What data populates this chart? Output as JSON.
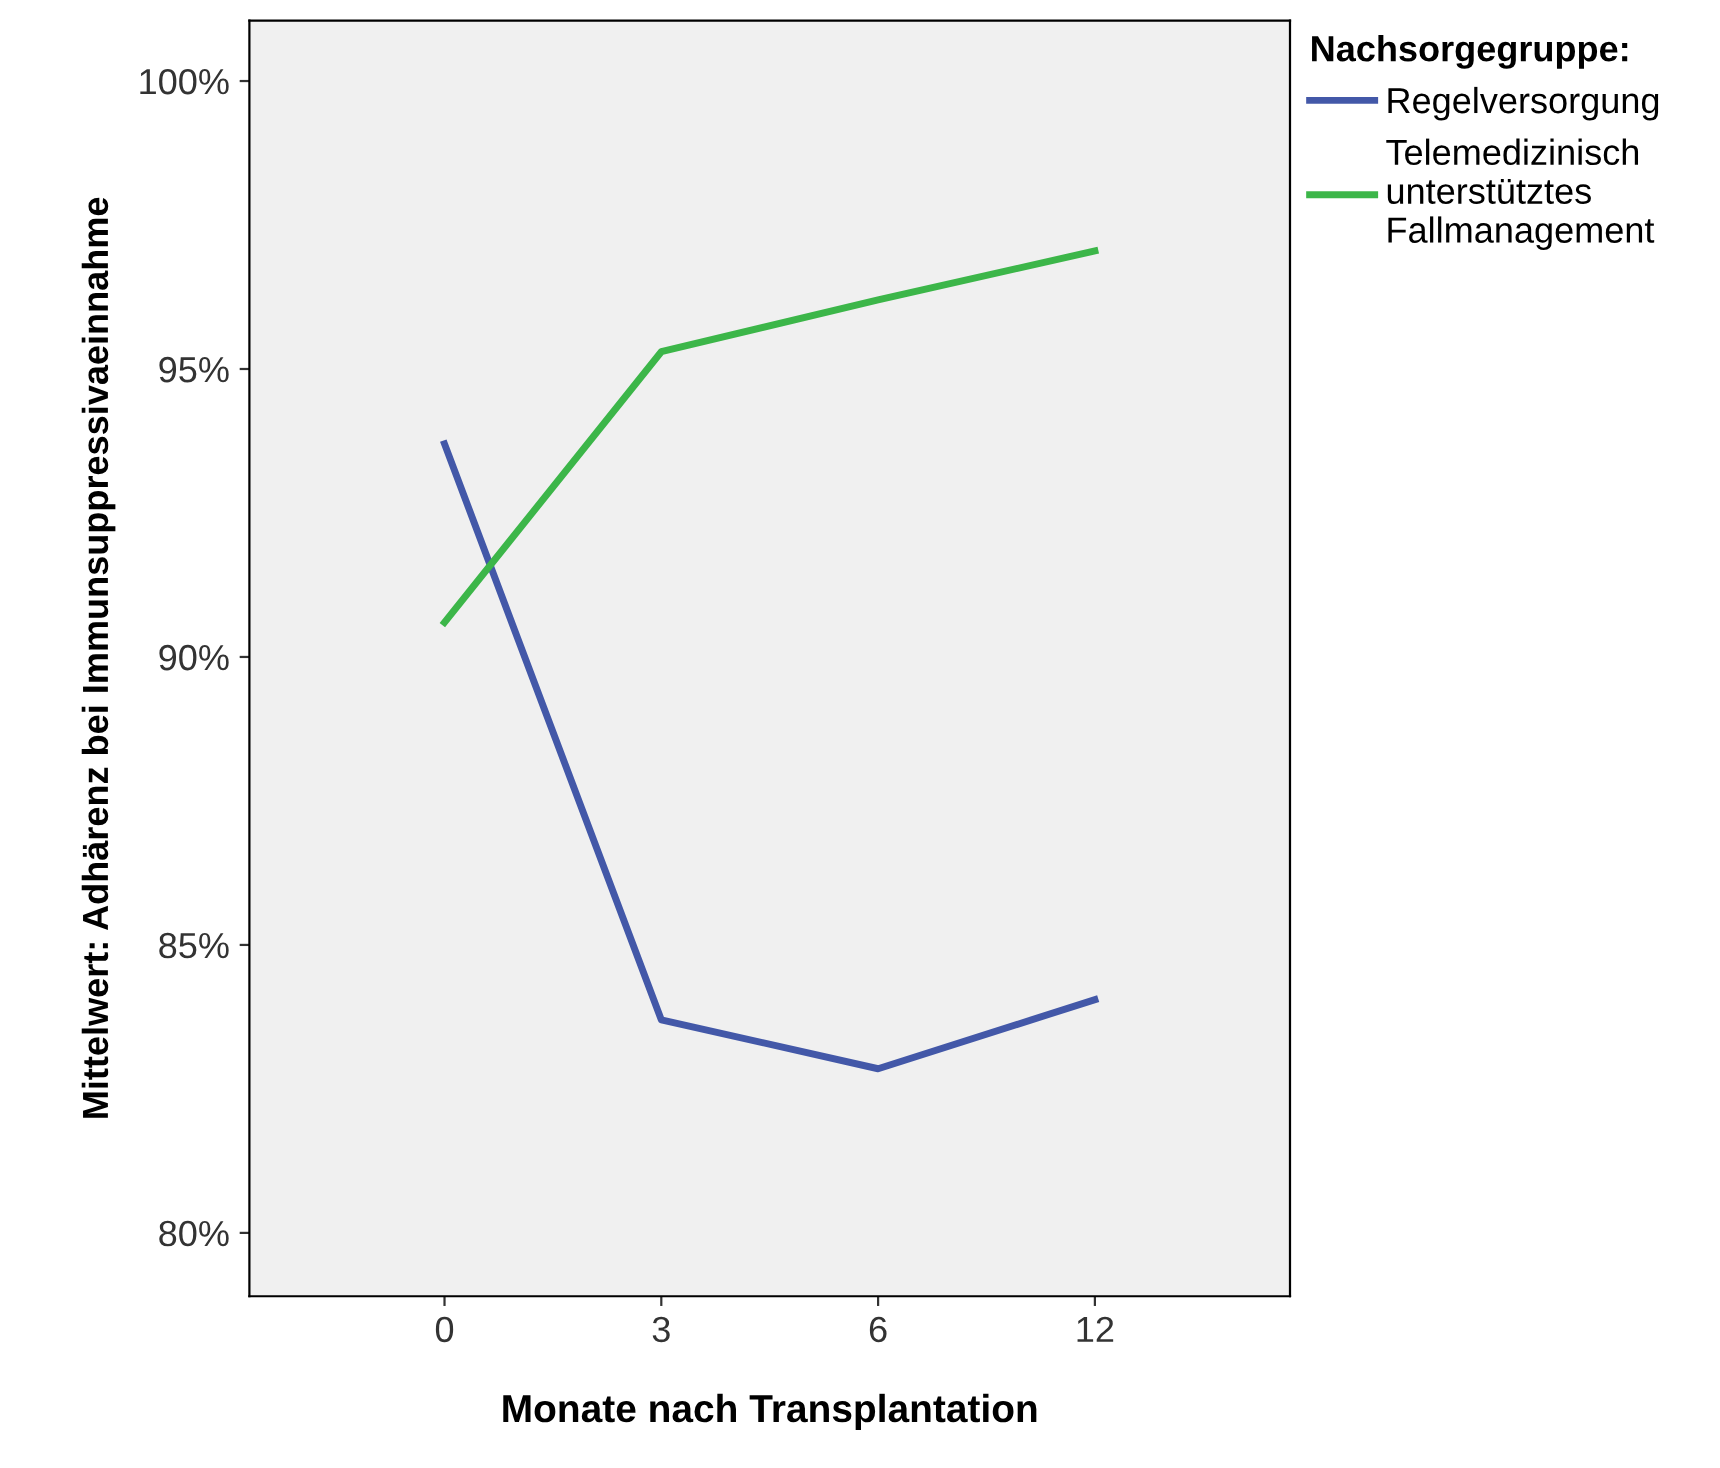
{
  "chart_data": {
    "type": "line",
    "xlabel": "Monate nach Transplantation",
    "ylabel": "Mittelwert: Adhärenz bei Immunsuppressivaeinnahme",
    "legend_title": "Nachsorgegruppe:",
    "categories": [
      "0",
      "3",
      "6",
      "12"
    ],
    "series": [
      {
        "name": "Regelversorgung",
        "color": "#4358a8",
        "values": [
          93.7,
          83.7,
          82.85,
          84.05
        ]
      },
      {
        "name": "Telemedizinisch\nunterstütztes\nFallmanagement",
        "color": "#3cb649",
        "values": [
          90.6,
          95.3,
          96.2,
          97.05
        ]
      }
    ],
    "ylim": [
      78.9,
      101.05
    ],
    "yticks": [
      {
        "value": 80,
        "label": "80%"
      },
      {
        "value": 85,
        "label": "85%"
      },
      {
        "value": 90,
        "label": "90%"
      },
      {
        "value": 95,
        "label": "95%"
      },
      {
        "value": 100,
        "label": "100%"
      }
    ],
    "grid": false,
    "legend": "top right",
    "marker": "none",
    "line_style": "solid"
  }
}
